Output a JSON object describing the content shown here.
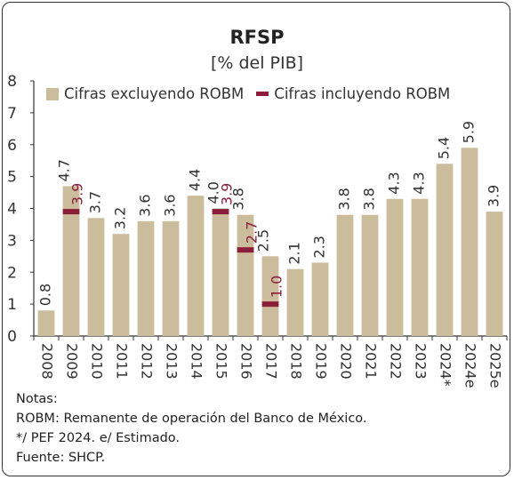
{
  "chart_data": {
    "type": "bar",
    "title": "RFSP",
    "subtitle": "[% del PIB]",
    "categories": [
      "2008",
      "2009",
      "2010",
      "2011",
      "2012",
      "2013",
      "2014",
      "2015",
      "2016",
      "2017",
      "2018",
      "2019",
      "2020",
      "2021",
      "2022",
      "2023",
      "2024*",
      "2024e",
      "2025e"
    ],
    "series": [
      {
        "name": "Cifras excluyendo ROBM",
        "type": "bar",
        "color": "#cbbc9b",
        "values": [
          0.8,
          4.7,
          3.7,
          3.2,
          3.6,
          3.6,
          4.4,
          4.0,
          3.8,
          2.5,
          2.1,
          2.3,
          3.8,
          3.8,
          4.3,
          4.3,
          5.4,
          5.9,
          3.9
        ],
        "labels": [
          "0.8",
          "4.7",
          "3.7",
          "3.2",
          "3.6",
          "3.6",
          "4.4",
          "4.0",
          "3.8",
          "2.5",
          "2.1",
          "2.3",
          "3.8",
          "3.8",
          "4.3",
          "4.3",
          "5.4",
          "5.9",
          "3.9"
        ]
      },
      {
        "name": "Cifras incluyendo ROBM",
        "type": "marker",
        "color": "#8b1d3b",
        "values": [
          null,
          3.9,
          null,
          null,
          null,
          null,
          null,
          3.9,
          2.7,
          1.0,
          null,
          null,
          null,
          null,
          null,
          null,
          null,
          null,
          null
        ],
        "labels": [
          null,
          "3.9",
          null,
          null,
          null,
          null,
          null,
          "3.9",
          "2.7",
          "1.0",
          null,
          null,
          null,
          null,
          null,
          null,
          null,
          null,
          null
        ]
      }
    ],
    "yticks": [
      "0",
      "1",
      "2",
      "3",
      "4",
      "5",
      "6",
      "7",
      "8"
    ],
    "ylim": [
      0,
      8
    ],
    "grid": false,
    "legend_position": "top"
  },
  "notes": {
    "heading": "Notas:",
    "line1": "ROBM: Remanente de operación del Banco de México.",
    "line2": "*/ PEF 2024. e/ Estimado.",
    "line3": "Fuente: SHCP."
  }
}
